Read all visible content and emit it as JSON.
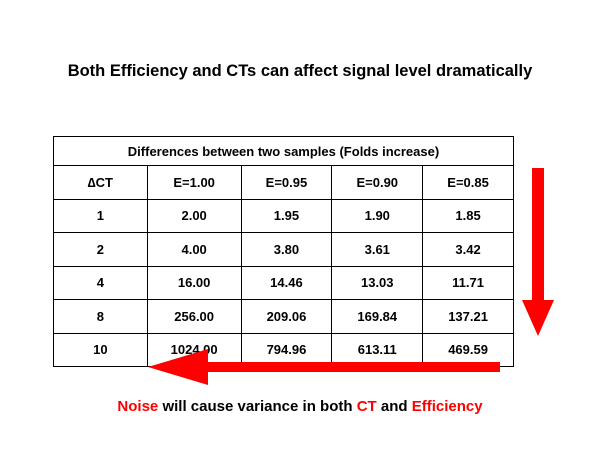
{
  "slide": {
    "title": "Both Efficiency and CTs can affect signal level dramatically"
  },
  "table": {
    "caption": "Differences between two samples (Folds increase)",
    "headers": [
      "∆CT",
      "E=1.00",
      "E=0.95",
      "E=0.90",
      "E=0.85"
    ],
    "rows": [
      [
        "1",
        "2.00",
        "1.95",
        "1.90",
        "1.85"
      ],
      [
        "2",
        "4.00",
        "3.80",
        "3.61",
        "3.42"
      ],
      [
        "4",
        "16.00",
        "14.46",
        "13.03",
        "11.71"
      ],
      [
        "8",
        "256.00",
        "209.06",
        "169.84",
        "137.21"
      ],
      [
        "10",
        "1024.00",
        "794.96",
        "613.11",
        "469.59"
      ]
    ]
  },
  "footer": {
    "noise": "Noise",
    "mid": " will cause variance in both ",
    "ct": "CT",
    "and": " and ",
    "efficiency": "Efficiency"
  },
  "colors": {
    "accent": "#ff0000",
    "text": "#000000"
  },
  "icons": {
    "down": "arrow-down-icon",
    "left": "arrow-left-icon"
  }
}
